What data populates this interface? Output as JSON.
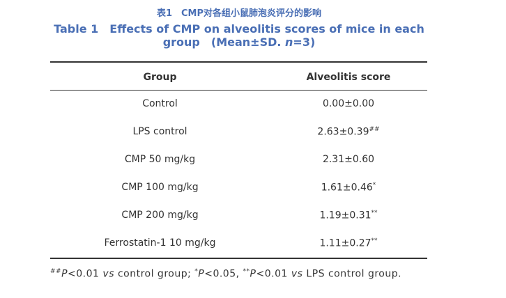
{
  "header": {
    "title_cn": "表1　CMP对各组小鼠肺泡炎评分的影响",
    "title_en": [
      {
        "text": "Table 1　Effects of CMP on alveolitis scores of mice in each"
      },
      {
        "text": "group　(Mean±SD. "
      },
      {
        "text": "n",
        "italic": true
      },
      {
        "text": "=3)"
      }
    ]
  },
  "table": {
    "columns": [
      "Group",
      "Alveolitis score"
    ],
    "rows": [
      [
        "Control",
        "0.00±0.00",
        ""
      ],
      [
        "LPS control",
        "2.63±0.39",
        "##"
      ],
      [
        "CMP 50 mg/kg",
        "2.31±0.60",
        ""
      ],
      [
        "CMP 100 mg/kg",
        "1.61±0.46",
        "*"
      ],
      [
        "CMP 200 mg/kg",
        "1.19±0.31",
        "**"
      ],
      [
        "Ferrostatin-1 10 mg/kg",
        "1.11±0.27",
        "**"
      ]
    ]
  },
  "footnote": [
    {
      "text": "##",
      "sup": true
    },
    {
      "text": "P",
      "italic": true
    },
    {
      "text": "<0.01 "
    },
    {
      "text": "vs",
      "italic": true
    },
    {
      "text": " control group;  "
    },
    {
      "text": "*",
      "sup": true
    },
    {
      "text": "P",
      "italic": true
    },
    {
      "text": "<0.05,  "
    },
    {
      "text": "**",
      "sup": true
    },
    {
      "text": "P",
      "italic": true
    },
    {
      "text": "<0.01 "
    },
    {
      "text": "vs",
      "italic": true
    },
    {
      "text": " LPS control group."
    }
  ]
}
